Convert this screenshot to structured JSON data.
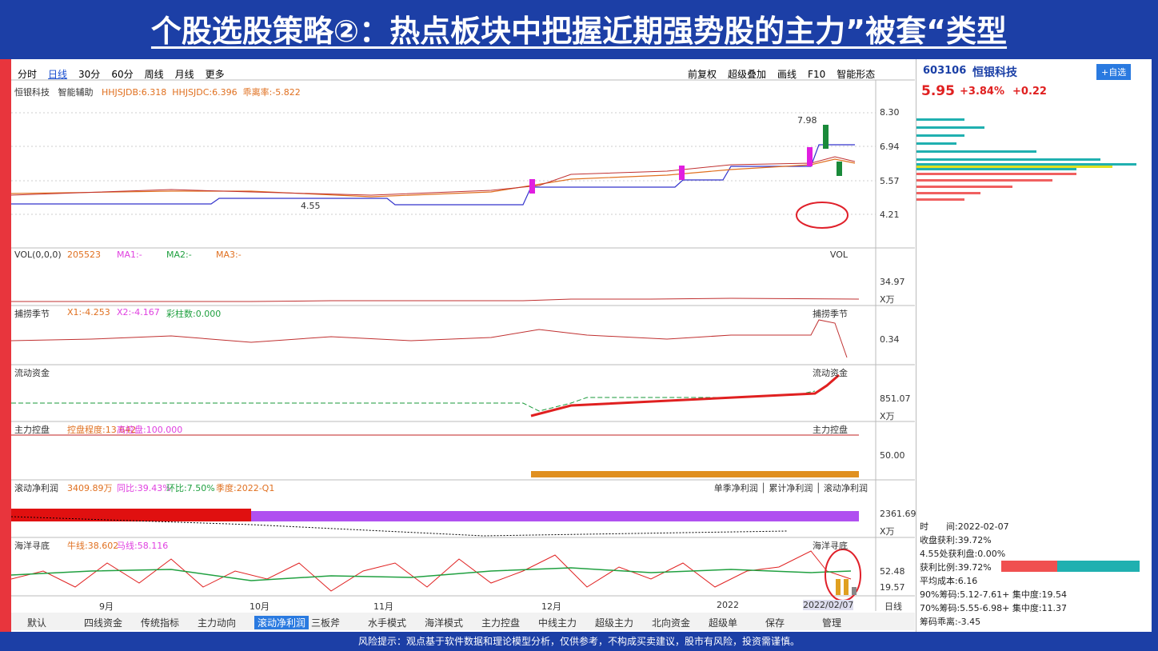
{
  "header": {
    "title": "个股选股策略②：热点板块中把握近期强势股的主力”被套“类型"
  },
  "toolbar": {
    "periods": [
      "分时",
      "日线",
      "30分",
      "60分",
      "周线",
      "月线",
      "更多"
    ],
    "tools": [
      "前复权",
      "超级叠加",
      "画线",
      "F10",
      "智能形态"
    ]
  },
  "price_panel": {
    "name": "恒银科技",
    "assist": "智能辅助",
    "indicators": [
      "HHJSJDB:6.318",
      "HHJSJDC:6.396",
      "乖离率:-5.822"
    ],
    "high_label": "7.98",
    "low_label": "4.55",
    "axis": [
      "8.30",
      "6.94",
      "5.57",
      "4.21"
    ]
  },
  "panels": [
    {
      "label": "VOL(0,0,0)",
      "items": [
        "205523",
        "MA1:-",
        "MA2:-",
        "MA3:-"
      ],
      "right": "VOL",
      "axis": [
        "34.97",
        "X万"
      ]
    },
    {
      "label": "捕捞季节",
      "items": [
        "X1:-4.253",
        "X2:-4.167",
        "彩柱数:0.000"
      ],
      "right": "捕捞季节",
      "axis": [
        "0.34"
      ]
    },
    {
      "label": "流动资金",
      "items": [],
      "right": "流动资金",
      "axis": [
        "851.07",
        "X万"
      ]
    },
    {
      "label": "主力控盘",
      "items": [
        "控盘程度:13.642",
        "高控盘:100.000"
      ],
      "right": "主力控盘",
      "axis": [
        "50.00"
      ]
    },
    {
      "label": "滚动净利润",
      "items": [
        "3409.89万",
        "同比:39.43%",
        "环比:7.50%",
        "季度:2022-Q1"
      ],
      "right": "单季净利润 │ 累计净利润 │ 滚动净利润",
      "axis": [
        "2361.69",
        "X万"
      ]
    },
    {
      "label": "海洋寻底",
      "items": [
        "牛线:38.602",
        "马线:58.116"
      ],
      "right": "海洋寻底",
      "axis": [
        "52.48",
        "19.57"
      ]
    }
  ],
  "x_axis": {
    "labels": [
      "9月",
      "10月",
      "11月",
      "12月",
      "2022"
    ],
    "date": "2022/02/07",
    "period": "日线"
  },
  "tabs": [
    "默认",
    "四线资金",
    "传统指标",
    "主力动向",
    "滚动净利润",
    "三板斧",
    "水手模式",
    "海洋模式",
    "主力控盘",
    "中线主力",
    "超级主力",
    "北向资金",
    "超级单",
    "保存",
    "管理"
  ],
  "side": {
    "code": "603106",
    "name": "恒银科技",
    "add": "+自选",
    "price": "5.95",
    "pct": "+3.84%",
    "change": "+0.22",
    "info": [
      "时　　间:2022-02-07",
      "收盘获利:39.72%",
      "4.55处获利盘:0.00%",
      "获利比例:39.72%",
      "平均成本:6.16",
      "90%筹码:5.12-7.61+ 集中度:19.54",
      "70%筹码:5.55-6.98+ 集中度:11.37",
      "筹码乖离:-3.45"
    ]
  },
  "footer": {
    "text": "风险提示：观点基于软件数据和理论模型分析，仅供参考，不构成买卖建议，股市有风险，投资需谨慎。"
  }
}
